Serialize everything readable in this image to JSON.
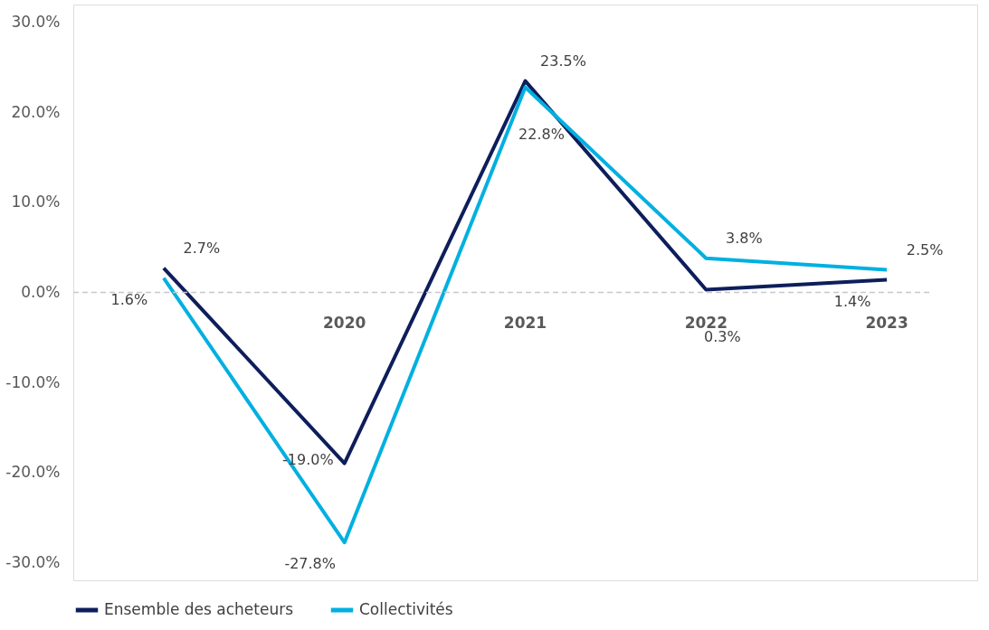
{
  "chart_data": {
    "type": "line",
    "categories": [
      null,
      "2020",
      "2021",
      "2022",
      "2023"
    ],
    "series": [
      {
        "name": "Ensemble des acheteurs",
        "color": "#0e1e5b",
        "values": [
          2.7,
          -19.0,
          23.5,
          0.3,
          1.4
        ],
        "value_labels": [
          "2.7%",
          "-19.0%",
          "23.5%",
          "0.3%",
          "1.4%"
        ]
      },
      {
        "name": "Collectivités",
        "color": "#00b0e0",
        "values": [
          1.6,
          -27.8,
          22.8,
          3.8,
          2.5
        ],
        "value_labels": [
          "1.6%",
          "-27.8%",
          "22.8%",
          "3.8%",
          "2.5%"
        ]
      }
    ],
    "ylim": [
      -32,
      32
    ],
    "yticks": [
      {
        "value": -30,
        "label": "-30.0%"
      },
      {
        "value": -20,
        "label": "-20.0%"
      },
      {
        "value": -10,
        "label": "-10.0%"
      },
      {
        "value": 0,
        "label": "0.0%"
      },
      {
        "value": 10,
        "label": "10.0%"
      },
      {
        "value": 20,
        "label": "20.0%"
      },
      {
        "value": 30,
        "label": "30.0%"
      }
    ],
    "ref_lines": [
      {
        "axis": "y",
        "value": 0,
        "color": "#c8c8c8",
        "line_style": "dashed"
      }
    ],
    "grid": false,
    "legend": "bottom",
    "marker": "none",
    "line_style": "solid"
  }
}
